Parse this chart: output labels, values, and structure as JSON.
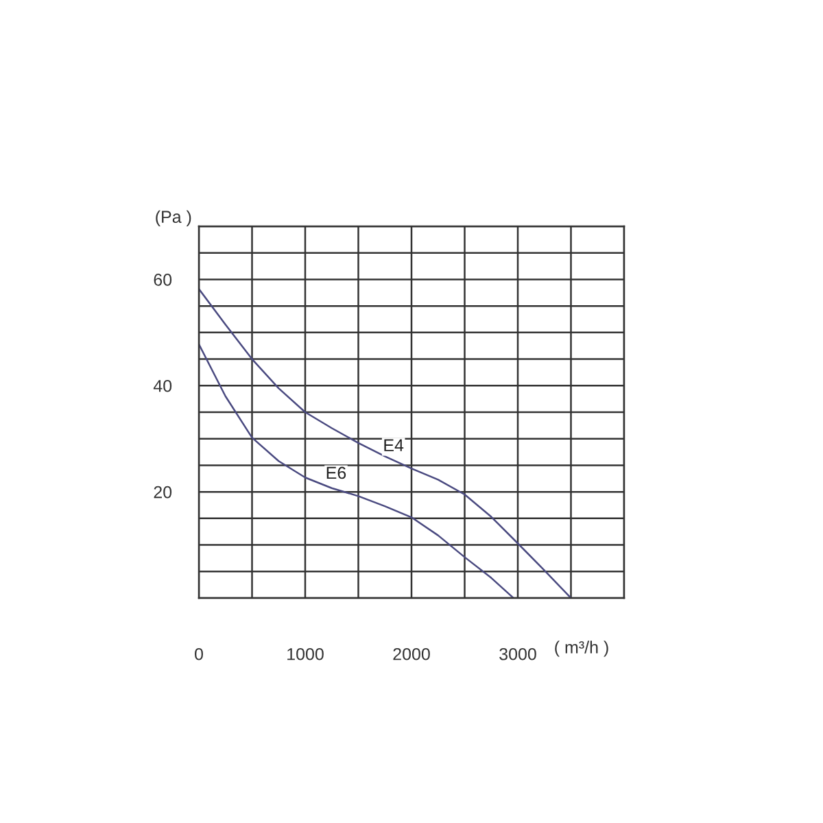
{
  "chart_data": {
    "type": "line",
    "xlabel": "( m³/h )",
    "ylabel": "(Pa )",
    "xlim": [
      0,
      4000
    ],
    "ylim": [
      0,
      70
    ],
    "xticks": [
      0,
      {
        "value": 500,
        "label": null
      },
      1000,
      {
        "value": 1500,
        "label": null
      },
      2000,
      {
        "value": 2500,
        "label": null
      },
      3000,
      {
        "value": 3500,
        "label": null
      },
      {
        "value": 4000,
        "label": null
      }
    ],
    "yticks": [
      {
        "value": 0,
        "label": null
      },
      {
        "value": 5,
        "label": null
      },
      {
        "value": 10,
        "label": null
      },
      {
        "value": 15,
        "label": null
      },
      20,
      {
        "value": 25,
        "label": null
      },
      {
        "value": 30,
        "label": null
      },
      {
        "value": 35,
        "label": null
      },
      40,
      {
        "value": 45,
        "label": null
      },
      {
        "value": 50,
        "label": null
      },
      {
        "value": 55,
        "label": null
      },
      60,
      {
        "value": 65,
        "label": null
      },
      {
        "value": 70,
        "label": null
      }
    ],
    "grid": true,
    "marker": "none",
    "line_style": "solid",
    "series": [
      {
        "color": "#4a4a80",
        "x": [
          0,
          250,
          500,
          750,
          1000,
          1250,
          1500,
          1750,
          2000,
          2250,
          2500,
          2750,
          3000,
          3250,
          3500
        ],
        "values": [
          58.2,
          51.5,
          45,
          39.5,
          35,
          32,
          29.2,
          26.7,
          24.4,
          22.3,
          19.5,
          15.3,
          10.3,
          5.2,
          0
        ]
      },
      {
        "color": "#4a4a80",
        "x": [
          0,
          250,
          500,
          750,
          1000,
          1250,
          1500,
          1750,
          2000,
          2250,
          2500,
          2750,
          2960
        ],
        "values": [
          47.8,
          38,
          30.2,
          25.8,
          22.7,
          20.7,
          19.2,
          17.3,
          15.2,
          11.8,
          7.7,
          3.8,
          0
        ]
      }
    ],
    "annotations": [
      {
        "text": "E4",
        "x": 1830,
        "y": 28.5
      },
      {
        "text": "E6",
        "x": 1290,
        "y": 23.3
      }
    ]
  }
}
